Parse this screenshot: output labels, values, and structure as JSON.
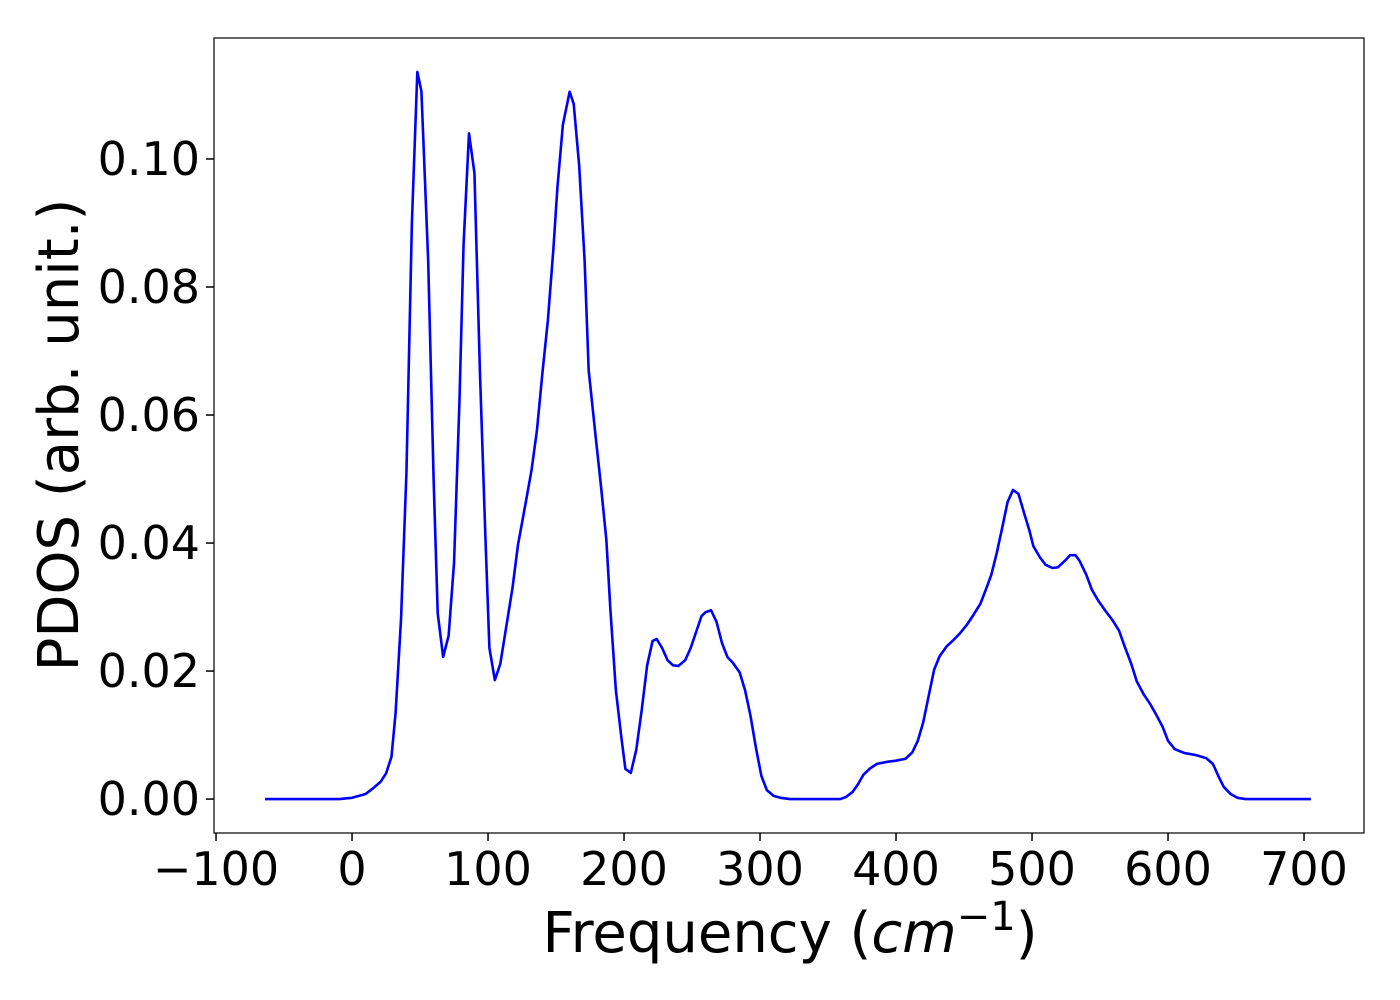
{
  "chart_data": {
    "type": "line",
    "xlabel": [
      "Frequency (",
      "cm",
      "−1",
      ")"
    ],
    "ylabel": "PDOS (arb. unit.)",
    "color": "#0000ff",
    "x": [
      -64,
      -9,
      -5,
      0,
      10,
      15,
      21,
      25,
      29,
      32,
      36,
      40,
      44,
      48,
      51,
      56,
      60,
      63,
      67,
      71,
      75,
      79,
      82,
      86,
      90,
      94,
      98,
      101,
      105,
      109,
      113,
      118,
      122,
      127,
      132,
      136,
      140,
      144,
      148,
      151,
      155,
      160,
      163,
      167,
      171,
      174,
      179,
      183,
      187,
      190,
      194,
      198,
      201,
      205,
      209,
      213,
      217,
      221,
      224,
      228,
      232,
      236,
      240,
      245,
      249,
      253,
      257,
      260,
      264,
      268,
      272,
      276,
      280,
      285,
      289,
      293,
      297,
      301,
      305,
      310,
      315,
      322,
      359,
      363,
      368,
      372,
      376,
      381,
      386,
      393,
      400,
      407,
      412,
      416,
      420,
      424,
      428,
      432,
      437,
      442,
      447,
      452,
      457,
      462,
      466,
      470,
      474,
      478,
      482,
      486,
      490,
      494,
      498,
      501,
      506,
      510,
      515,
      519,
      524,
      528,
      532,
      535,
      540,
      544,
      549,
      554,
      559,
      564,
      568,
      573,
      577,
      582,
      587,
      591,
      596,
      600,
      605,
      612,
      620,
      628,
      633,
      637,
      641,
      646,
      651,
      657,
      705
    ],
    "values": [
      0,
      0,
      0.0001,
      0.0002,
      0.0008,
      0.0016,
      0.0027,
      0.004,
      0.0066,
      0.0134,
      0.028,
      0.051,
      0.09,
      0.1136,
      0.1106,
      0.084,
      0.0498,
      0.029,
      0.0222,
      0.0255,
      0.0369,
      0.0623,
      0.0866,
      0.104,
      0.0978,
      0.067,
      0.0413,
      0.0236,
      0.0186,
      0.0211,
      0.0264,
      0.033,
      0.0397,
      0.0455,
      0.0514,
      0.0577,
      0.0666,
      0.0748,
      0.0858,
      0.0955,
      0.1053,
      0.1105,
      0.1086,
      0.099,
      0.0842,
      0.067,
      0.0569,
      0.049,
      0.0405,
      0.0295,
      0.017,
      0.0097,
      0.0047,
      0.0041,
      0.0077,
      0.0139,
      0.0209,
      0.0247,
      0.025,
      0.0236,
      0.0217,
      0.0209,
      0.0208,
      0.0217,
      0.0236,
      0.0261,
      0.0286,
      0.0292,
      0.0295,
      0.0277,
      0.0244,
      0.0222,
      0.0213,
      0.0198,
      0.017,
      0.013,
      0.008,
      0.0036,
      0.0014,
      0.0005,
      0.0002,
      0,
      0,
      0.0003,
      0.0011,
      0.0023,
      0.0038,
      0.0048,
      0.0055,
      0.0058,
      0.006,
      0.0063,
      0.0073,
      0.0091,
      0.012,
      0.0161,
      0.0202,
      0.0223,
      0.0238,
      0.0248,
      0.0259,
      0.0272,
      0.0288,
      0.0305,
      0.0327,
      0.035,
      0.0384,
      0.0423,
      0.0464,
      0.0483,
      0.0477,
      0.0448,
      0.042,
      0.0395,
      0.0377,
      0.0366,
      0.0361,
      0.0362,
      0.0372,
      0.0381,
      0.0381,
      0.0372,
      0.035,
      0.0327,
      0.0309,
      0.0294,
      0.028,
      0.0263,
      0.0239,
      0.0211,
      0.0184,
      0.0164,
      0.0148,
      0.0133,
      0.0113,
      0.0091,
      0.0078,
      0.0072,
      0.0069,
      0.0064,
      0.0055,
      0.0036,
      0.0019,
      0.0008,
      0.0002,
      0,
      0
    ],
    "xlim": [
      -101.5,
      744.1
    ],
    "ylim": [
      -0.0053,
      0.1189
    ],
    "xticks": [
      {
        "value": -100,
        "label": "−100"
      },
      0,
      100,
      200,
      300,
      400,
      500,
      600,
      700
    ],
    "yticks": [
      {
        "value": 0,
        "label": "0.00"
      },
      0.02,
      0.04,
      0.06,
      0.08,
      {
        "value": 0.1,
        "label": "0.10"
      }
    ]
  }
}
